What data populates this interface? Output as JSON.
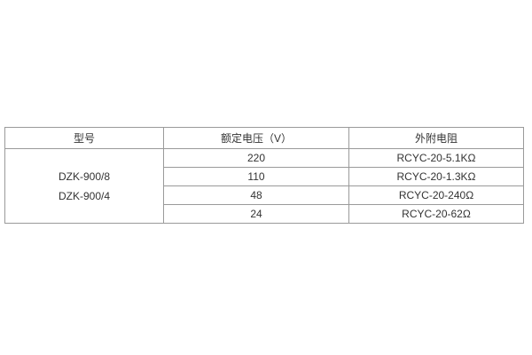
{
  "theme": {
    "border-color": "#9a9a9a",
    "text-color": "#333333",
    "page-background": "#ffffff"
  },
  "table": {
    "headers": [
      "型号",
      "额定电压（V）",
      "外附电阻"
    ],
    "model_cell": {
      "lines": [
        "DZK-900/8",
        "DZK-900/4"
      ]
    },
    "rows": [
      {
        "voltage": "220",
        "resistor": "RCYC-20-5.1KΩ"
      },
      {
        "voltage": "110",
        "resistor": "RCYC-20-1.3KΩ"
      },
      {
        "voltage": "48",
        "resistor": "RCYC-20-240Ω"
      },
      {
        "voltage": "24",
        "resistor": "RCYC-20-62Ω"
      }
    ]
  }
}
